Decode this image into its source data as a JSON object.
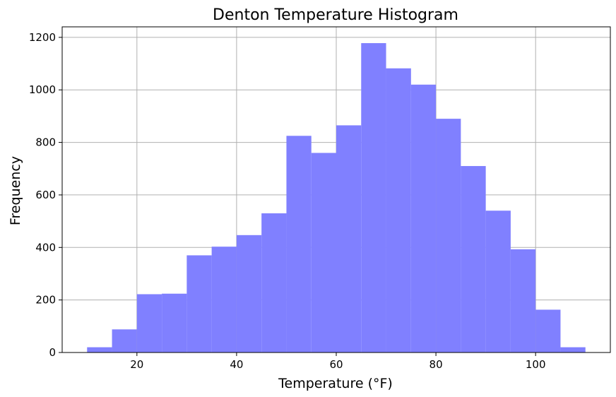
{
  "chart_data": {
    "type": "bar",
    "subtype": "histogram",
    "title": "Denton Temperature Histogram",
    "xlabel": "Temperature (°F)",
    "ylabel": "Frequency",
    "bin_edges": [
      10,
      15,
      20,
      25,
      30,
      35,
      40,
      45,
      50,
      55,
      60,
      65,
      70,
      75,
      80,
      85,
      90,
      95,
      100,
      105,
      110
    ],
    "values": [
      20,
      88,
      222,
      224,
      370,
      403,
      447,
      530,
      825,
      760,
      865,
      1178,
      1082,
      1020,
      890,
      710,
      540,
      393,
      163,
      20
    ],
    "xlim": [
      5,
      115
    ],
    "ylim": [
      0,
      1240
    ],
    "xticks": [
      20,
      40,
      60,
      80,
      100
    ],
    "xtick_labels": [
      "20",
      "40",
      "60",
      "80",
      "100"
    ],
    "yticks": [
      0,
      200,
      400,
      600,
      800,
      1000,
      1200
    ],
    "ytick_labels": [
      "0",
      "200",
      "400",
      "600",
      "800",
      "1000",
      "1200"
    ],
    "grid": true,
    "bar_color": "#8080ff",
    "grid_color": "#b0b0b0"
  }
}
